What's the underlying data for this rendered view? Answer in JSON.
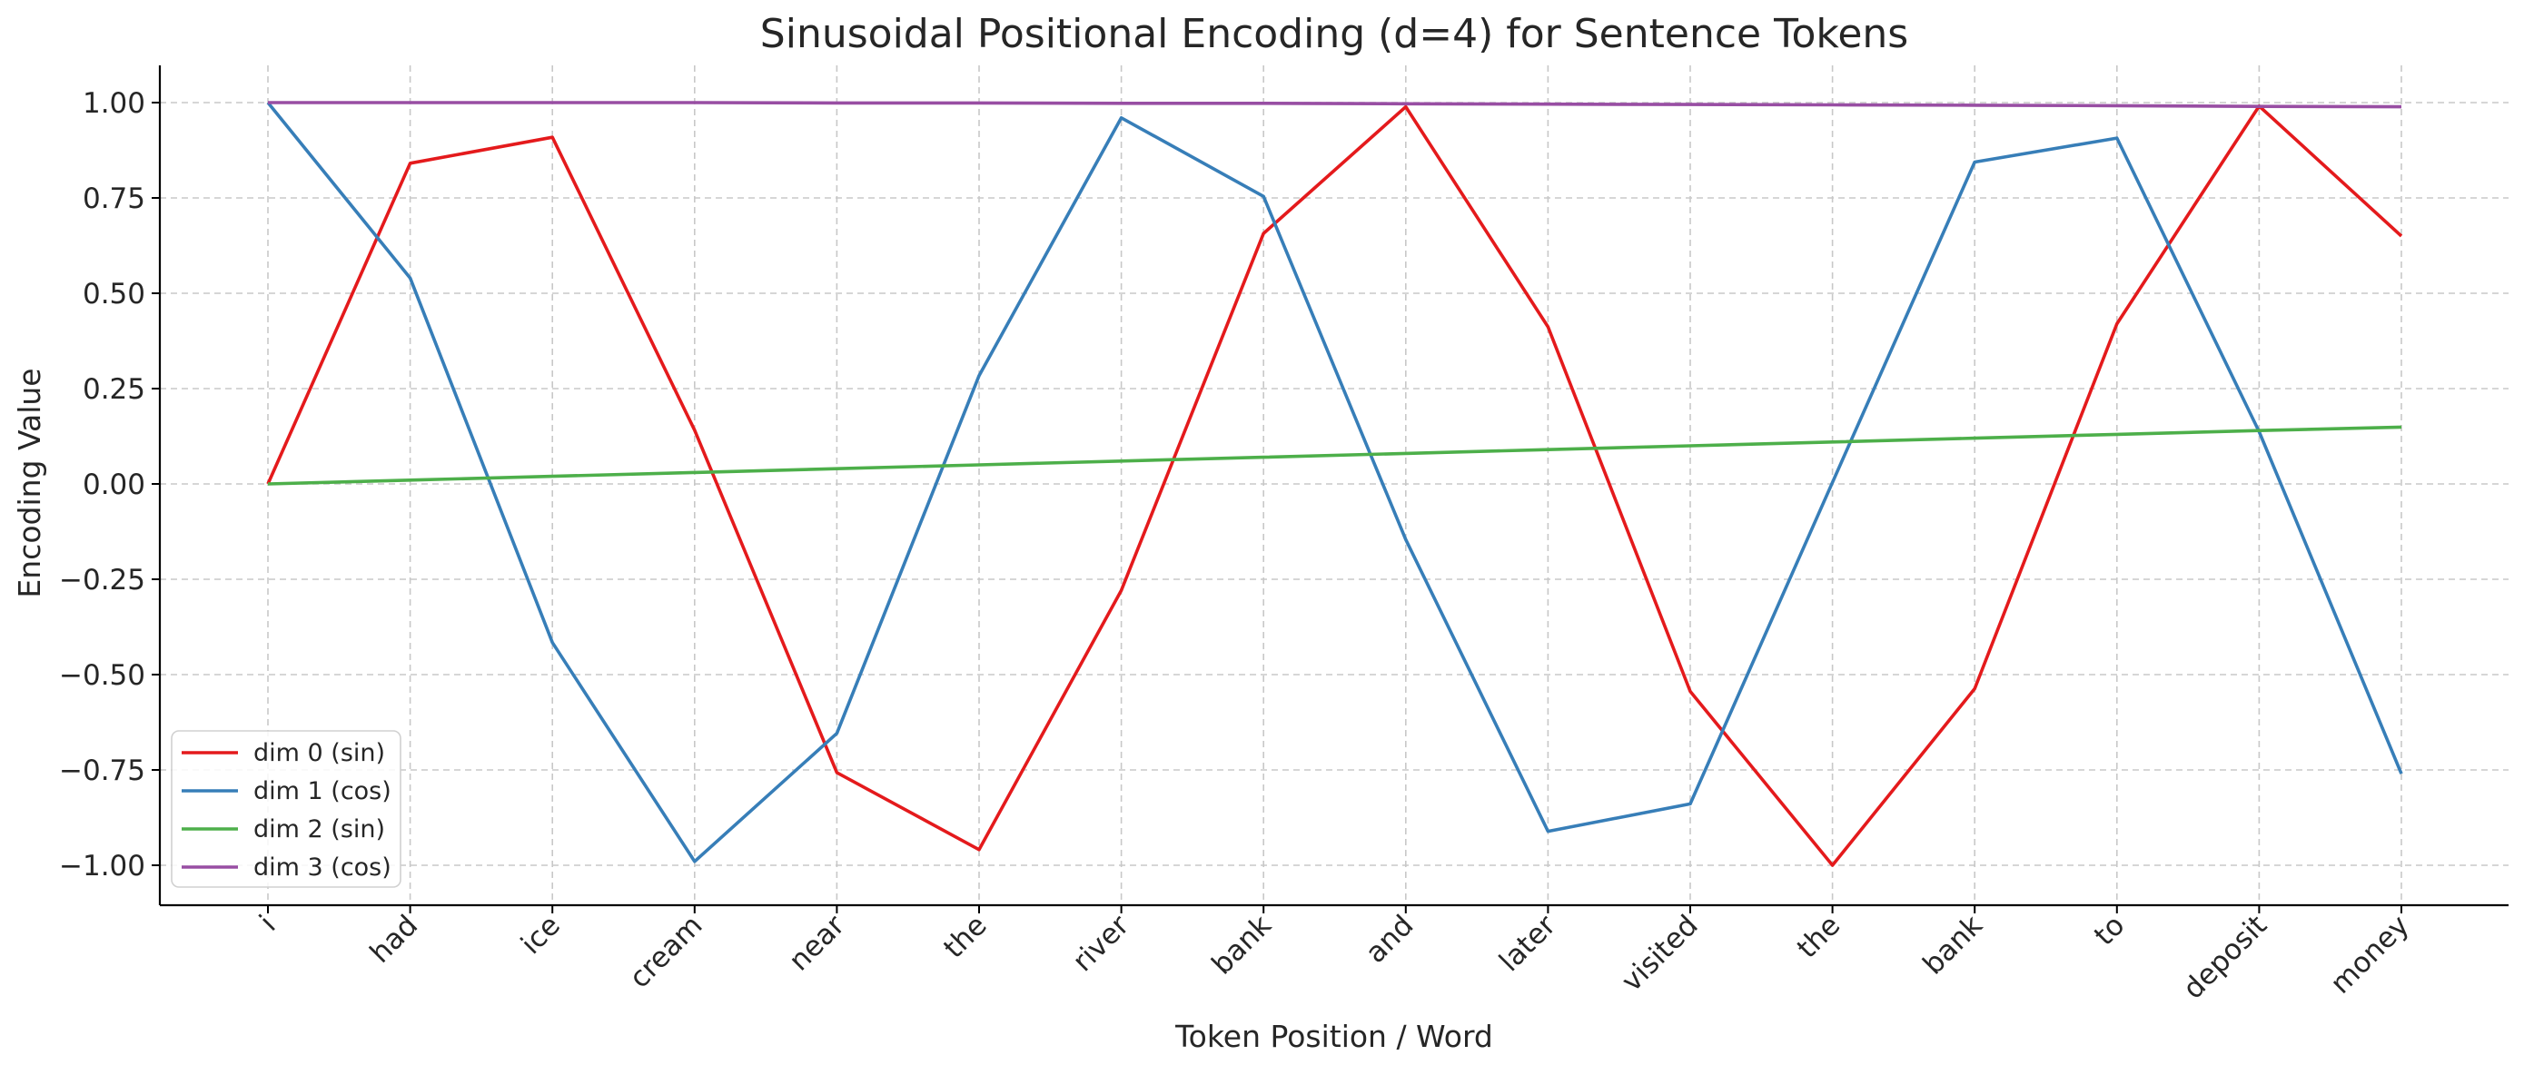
{
  "chart_data": {
    "type": "line",
    "title": "Sinusoidal Positional Encoding (d=4) for Sentence Tokens",
    "xlabel": "Token Position / Word",
    "ylabel": "Encoding Value",
    "categories": [
      "i",
      "had",
      "ice",
      "cream",
      "near",
      "the",
      "river",
      "bank",
      "and",
      "later",
      "visited",
      "the",
      "bank",
      "to",
      "deposit",
      "money"
    ],
    "ylim": [
      -1.1,
      1.1
    ],
    "yticks": [
      1.0,
      0.75,
      0.5,
      0.25,
      0.0,
      -0.25,
      -0.5,
      -0.75,
      -1.0
    ],
    "ytick_labels": [
      "1.00",
      "0.75",
      "0.50",
      "0.25",
      "0.00",
      "−0.25",
      "−0.50",
      "−0.75",
      "−1.00"
    ],
    "grid": true,
    "legend_position": "lower-left",
    "series": [
      {
        "name": "dim 0 (sin)",
        "color": "#e41a1c",
        "values": [
          0.0,
          0.841,
          0.909,
          0.141,
          -0.757,
          -0.959,
          -0.279,
          0.657,
          0.989,
          0.412,
          -0.544,
          -1.0,
          -0.537,
          0.42,
          0.991,
          0.65
        ]
      },
      {
        "name": "dim 1 (cos)",
        "color": "#377eb8",
        "values": [
          1.0,
          0.54,
          -0.416,
          -0.99,
          -0.654,
          0.284,
          0.96,
          0.754,
          -0.146,
          -0.911,
          -0.839,
          0.004,
          0.844,
          0.907,
          0.137,
          -0.76
        ]
      },
      {
        "name": "dim 2 (sin)",
        "color": "#4daf4a",
        "values": [
          0.0,
          0.01,
          0.02,
          0.03,
          0.04,
          0.05,
          0.06,
          0.07,
          0.08,
          0.09,
          0.1,
          0.11,
          0.12,
          0.13,
          0.14,
          0.149
        ]
      },
      {
        "name": "dim 3 (cos)",
        "color": "#984ea3",
        "values": [
          1.0,
          1.0,
          1.0,
          1.0,
          0.999,
          0.999,
          0.998,
          0.998,
          0.997,
          0.996,
          0.995,
          0.994,
          0.993,
          0.992,
          0.99,
          0.989
        ]
      }
    ]
  }
}
